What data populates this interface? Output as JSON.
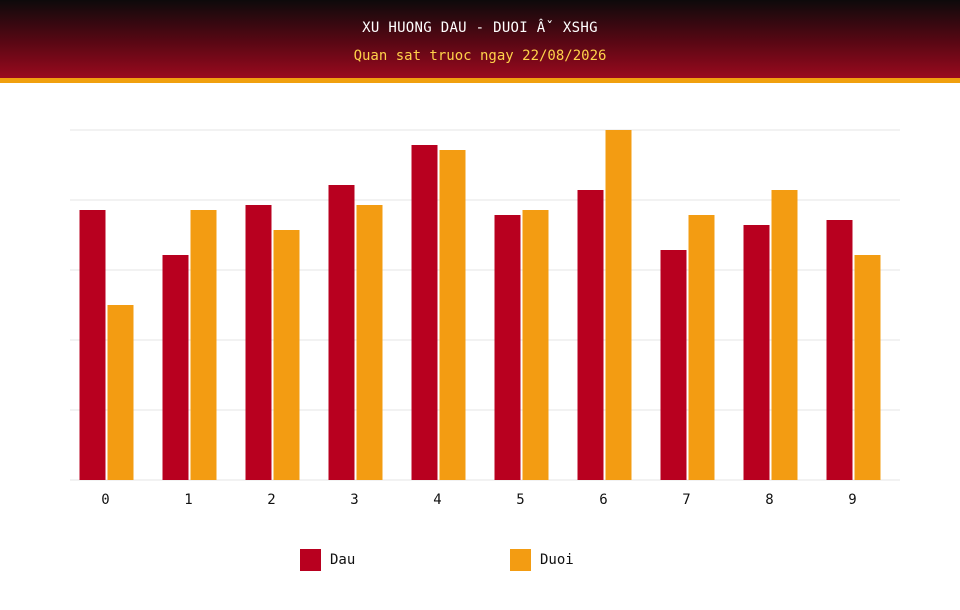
{
  "header": {
    "title": "XU HUONG DAU - DUOI Âˇ XSHG",
    "subtitle": "Quan sat truoc ngay 22/08/2026"
  },
  "colors": {
    "dau": "#b8001f",
    "duoi": "#f39c12",
    "grid": "#e6e6e6",
    "tick_text": "#111111"
  },
  "chart_data": {
    "type": "bar",
    "title": "",
    "xlabel": "",
    "ylabel": "",
    "categories": [
      "0",
      "1",
      "2",
      "3",
      "4",
      "5",
      "6",
      "7",
      "8",
      "9"
    ],
    "series": [
      {
        "name": "Dau",
        "values": [
          54,
          45,
          55,
          59,
          67,
          53,
          58,
          46,
          51,
          52
        ]
      },
      {
        "name": "Duoi",
        "values": [
          35,
          54,
          50,
          55,
          66,
          54,
          70,
          53,
          58,
          45
        ]
      }
    ],
    "ylim": [
      0,
      70
    ],
    "grid": true,
    "legend_position": "bottom"
  }
}
